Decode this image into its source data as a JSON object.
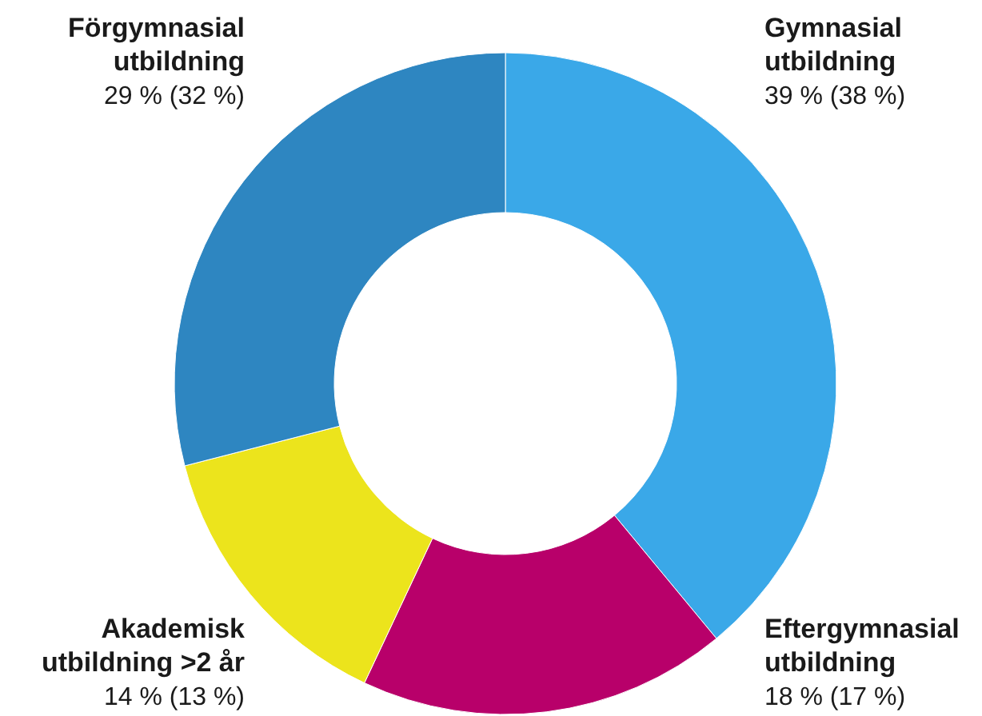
{
  "chart_data": {
    "type": "donut",
    "categories": [
      "Gymnasial\nutbildning",
      "Eftergymnasial\nutbildning",
      "Akademisk\nutbildning >2 år",
      "Förgymnasial\nutbildning"
    ],
    "values": [
      39,
      18,
      14,
      29
    ],
    "colors": [
      "#3aa8e8",
      "#b8006a",
      "#ece41c",
      "#2e86c1"
    ],
    "value_labels": [
      "39 % (38 %)",
      "18 % (17 %)",
      "14 % (13 %)",
      "29 % (32 %)"
    ]
  }
}
